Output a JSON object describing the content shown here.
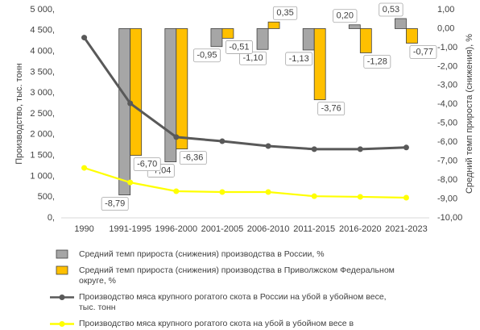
{
  "chart_data": {
    "type": "combo",
    "y_label": "Производство, тыс. тонн",
    "y2_label": "Средний темп прироста (снижения), %",
    "categories": [
      "1990",
      "1991-1995",
      "1996-2000",
      "2001-2005",
      "2006-2010",
      "2011-2015",
      "2016-2020",
      "2021-2023"
    ],
    "ylim": [
      0,
      5000
    ],
    "yticks": [
      {
        "value": 0,
        "label": "0,"
      },
      {
        "value": 500,
        "label": "500,"
      },
      {
        "value": 1000,
        "label": "1 000,"
      },
      {
        "value": 1500,
        "label": "1 500,"
      },
      {
        "value": 2000,
        "label": "2 000,"
      },
      {
        "value": 2500,
        "label": "2 500,"
      },
      {
        "value": 3000,
        "label": "3 000,"
      },
      {
        "value": 3500,
        "label": "3 500,"
      },
      {
        "value": 4000,
        "label": "4 000,"
      },
      {
        "value": 4500,
        "label": "4 500,"
      },
      {
        "value": 5000,
        "label": "5 000,"
      }
    ],
    "y2lim": [
      -10,
      1
    ],
    "y2ticks": [
      {
        "value": 1,
        "label": "1,00"
      },
      {
        "value": 0,
        "label": "0,00"
      },
      {
        "value": -1,
        "label": "-1,00"
      },
      {
        "value": -2,
        "label": "-2,00"
      },
      {
        "value": -3,
        "label": "-3,00"
      },
      {
        "value": -4,
        "label": "-4,00"
      },
      {
        "value": -5,
        "label": "-5,00"
      },
      {
        "value": -6,
        "label": "-6,00"
      },
      {
        "value": -7,
        "label": "-7,00"
      },
      {
        "value": -8,
        "label": "-8,00"
      },
      {
        "value": -9,
        "label": "-9,00"
      },
      {
        "value": -10,
        "label": "-10,00"
      }
    ],
    "series": [
      {
        "name": "Средний темп прироста (снижения) производства в России, %",
        "type": "bar",
        "axis": "y2",
        "color": "#a6a6a6",
        "values": [
          null,
          -8.79,
          -7.04,
          -0.95,
          -1.1,
          -1.13,
          0.2,
          0.53
        ],
        "value_labels": [
          null,
          "-8,79",
          "-7,04",
          "-0,95",
          "-1,10",
          "-1,13",
          "0,20",
          "0,53"
        ]
      },
      {
        "name": "Средний темп прироста (снижения) производства в Приволжском Федеральном округе, %",
        "type": "bar",
        "axis": "y2",
        "color": "#ffc000",
        "values": [
          null,
          -6.7,
          -6.36,
          -0.51,
          0.35,
          -3.76,
          -1.28,
          -0.77
        ],
        "value_labels": [
          null,
          "-6,70",
          "-6,36",
          "-0,51",
          "0,35",
          "-3,76",
          "-1,28",
          "-0,77"
        ]
      },
      {
        "name": "Производство мяса крупного рогатого скота в России на убой в убойном весе, тыс. тонн",
        "type": "line",
        "color": "#595959",
        "values": [
          4330,
          2750,
          1940,
          1840,
          1725,
          1650,
          1650,
          1690
        ]
      },
      {
        "name": "Производство мяса крупного рогатого скота на убой в убойном весе в Приволжском федеральном округе, тыс. тонн",
        "type": "line",
        "color": "#ffff00",
        "values": [
          1200,
          850,
          640,
          620,
          620,
          520,
          505,
          485
        ]
      }
    ]
  }
}
